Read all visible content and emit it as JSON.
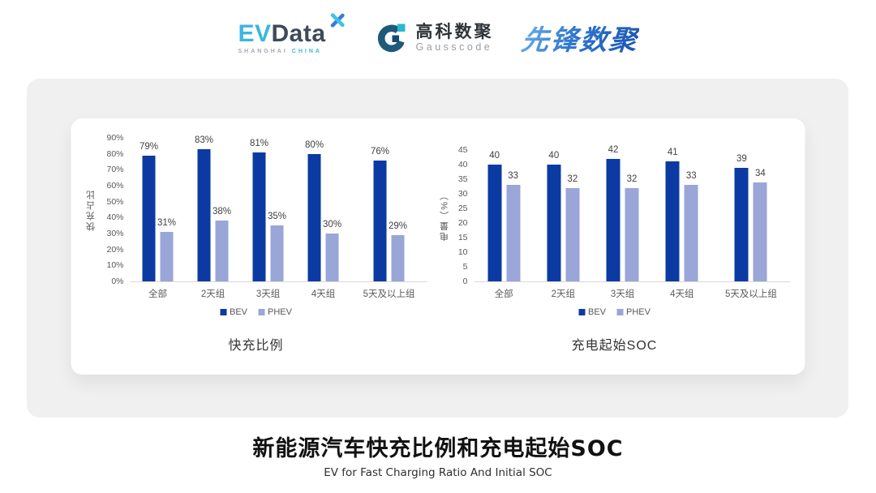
{
  "header": {
    "evdata": {
      "ev": "EV",
      "data": "Data",
      "location_1": "SHANGHAI",
      "location_2": "CHINA"
    },
    "gausscode": {
      "name_cn": "高科数聚",
      "name_en": "Gausscode"
    },
    "pioneer": {
      "name": "先锋数聚"
    }
  },
  "colors": {
    "bev": "#0b3aa2",
    "phev": "#9aa5d8",
    "evdata_cyan": "#3ab7dc",
    "evdata_dark": "#3e4a59",
    "gausscode_teal": "#1e5a7a",
    "gausscode_cyan": "#2ab9cf",
    "pioneer_blue": "#1a55b2",
    "axis_text": "#595959",
    "baseline": "#d9d9d9"
  },
  "chart_data": [
    {
      "type": "bar",
      "title": "快充比例",
      "ylabel": "快充占比",
      "xlabel": "",
      "categories": [
        "全部",
        "2天组",
        "3天组",
        "4天组",
        "5天及以上组"
      ],
      "series": [
        {
          "name": "BEV",
          "color": "#0b3aa2",
          "values": [
            79,
            83,
            81,
            80,
            76
          ]
        },
        {
          "name": "PHEV",
          "color": "#9aa5d8",
          "values": [
            31,
            38,
            35,
            30,
            29
          ]
        }
      ],
      "ylim": [
        0,
        90
      ],
      "ytick_step": 10,
      "tick_suffix": "%",
      "label_suffix": "%",
      "legend": [
        "BEV",
        "PHEV"
      ],
      "legend_position": "bottom",
      "grid": false
    },
    {
      "type": "bar",
      "title": "充电起始SOC",
      "ylabel": "电量（%）",
      "xlabel": "",
      "categories": [
        "全部",
        "2天组",
        "3天组",
        "4天组",
        "5天及以上组"
      ],
      "series": [
        {
          "name": "BEV",
          "color": "#0b3aa2",
          "values": [
            40,
            40,
            42,
            41,
            39
          ]
        },
        {
          "name": "PHEV",
          "color": "#9aa5d8",
          "values": [
            33,
            32,
            32,
            33,
            34
          ]
        }
      ],
      "ylim": [
        0,
        45
      ],
      "ytick_step": 5,
      "tick_suffix": "",
      "label_suffix": "",
      "legend": [
        "BEV",
        "PHEV"
      ],
      "legend_position": "bottom",
      "grid": false
    }
  ],
  "footer": {
    "title": "新能源汽车快充比例和充电起始SOC",
    "subtitle": "EV for Fast Charging Ratio And Initial SOC"
  }
}
